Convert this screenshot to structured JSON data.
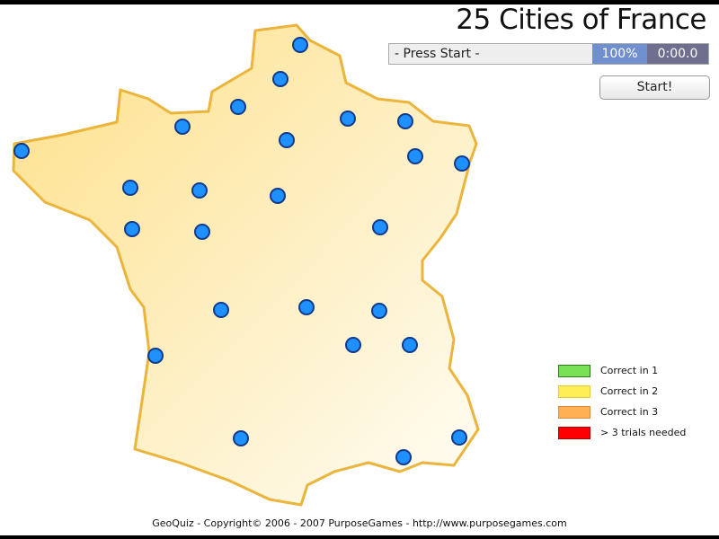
{
  "title": "25 Cities of France",
  "status": {
    "message": "- Press Start -",
    "percent": "100%",
    "time": "0:00.0"
  },
  "start_label": "Start!",
  "legend": [
    {
      "label": "Correct in 1",
      "color": "#77e055"
    },
    {
      "label": "Correct in 2",
      "color": "#ffee55"
    },
    {
      "label": "Correct in 3",
      "color": "#ffb055"
    },
    {
      "label": "> 3 trials needed",
      "color": "#ff0000"
    }
  ],
  "footer": "GeoQuiz - Copyright© 2006 - 2007 PurposeGames - http://www.purposegames.com",
  "colors": {
    "land_fill": "#fde79a",
    "land_border": "#ebb43c",
    "city": "#1e90ff"
  },
  "cities_count": 25
}
